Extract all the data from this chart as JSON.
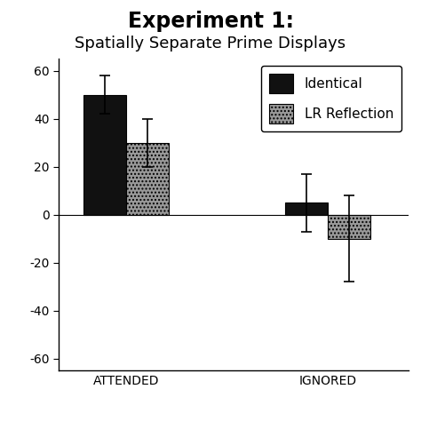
{
  "title_line1": "Experiment 1:",
  "title_line2": "Spatially Separate Prime Displays",
  "categories": [
    "ATTENDED",
    "IGNORED"
  ],
  "bar_labels": [
    "Identical",
    "LR Reflection"
  ],
  "bar_colors": [
    "#111111",
    "#999999"
  ],
  "bar_hatch": [
    null,
    "...."
  ],
  "values": [
    [
      50,
      30
    ],
    [
      5,
      -10
    ]
  ],
  "errors": [
    [
      8,
      10
    ],
    [
      12,
      18
    ]
  ],
  "ylim": [
    -65,
    65
  ],
  "yticks": [
    -60,
    -40,
    -20,
    0,
    20,
    40,
    60
  ],
  "ytick_labels": [
    "-60",
    "-40",
    "-20",
    "0",
    "20",
    "40",
    "60"
  ],
  "bar_width": 0.32,
  "legend_loc": "upper right",
  "background_color": "#ffffff",
  "title_fontsize": 17,
  "subtitle_fontsize": 13,
  "tick_fontsize": 10,
  "legend_fontsize": 11,
  "xlabel_fontsize": 13,
  "capsize": 4,
  "group_centers": [
    0.5,
    2.0
  ]
}
